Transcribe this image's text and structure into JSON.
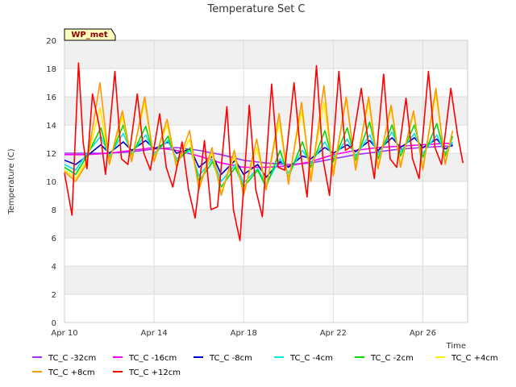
{
  "chart_data": {
    "type": "line",
    "title": "Temperature Set C",
    "xlabel": "Time",
    "ylabel": "Temperature (C)",
    "badge": "WP_met",
    "ylim": [
      0,
      20
    ],
    "yticks": [
      0,
      2,
      4,
      6,
      8,
      10,
      12,
      14,
      16,
      18,
      20
    ],
    "xlim": [
      "2024-04-10",
      "2024-04-28"
    ],
    "xticks": [
      {
        "date": "2024-04-10",
        "label": "Apr 10"
      },
      {
        "date": "2024-04-14",
        "label": "Apr 14"
      },
      {
        "date": "2024-04-18",
        "label": "Apr 18"
      },
      {
        "date": "2024-04-22",
        "label": "Apr 22"
      },
      {
        "date": "2024-04-26",
        "label": "Apr 26"
      }
    ],
    "grid": true,
    "legend_placement": "bottom",
    "series": [
      {
        "name": "TC_C -32cm",
        "color": "#9933ff",
        "x": [
          "2024-04-10",
          "2024-04-11",
          "2024-04-12",
          "2024-04-13",
          "2024-04-14",
          "2024-04-15",
          "2024-04-16",
          "2024-04-17",
          "2024-04-18",
          "2024-04-19",
          "2024-04-20",
          "2024-04-21",
          "2024-04-22",
          "2024-04-23",
          "2024-04-24",
          "2024-04-25",
          "2024-04-26",
          "2024-04-27",
          "2024-04-27T08:00"
        ],
        "y": [
          12.0,
          12.0,
          12.0,
          12.1,
          12.3,
          12.4,
          12.2,
          11.9,
          11.5,
          11.3,
          11.2,
          11.3,
          11.6,
          11.9,
          12.1,
          12.3,
          12.4,
          12.5,
          12.5
        ]
      },
      {
        "name": "TC_C -16cm",
        "color": "#ff00ff",
        "x": [
          "2024-04-10",
          "2024-04-11",
          "2024-04-12",
          "2024-04-13",
          "2024-04-14",
          "2024-04-15",
          "2024-04-16",
          "2024-04-17",
          "2024-04-18",
          "2024-04-19",
          "2024-04-20",
          "2024-04-21",
          "2024-04-22",
          "2024-04-23",
          "2024-04-24",
          "2024-04-25",
          "2024-04-26",
          "2024-04-27",
          "2024-04-27T08:00"
        ],
        "y": [
          11.9,
          11.9,
          12.0,
          12.2,
          12.4,
          12.2,
          11.8,
          11.3,
          11.0,
          11.0,
          11.1,
          11.4,
          11.9,
          12.2,
          12.4,
          12.5,
          12.6,
          12.7,
          12.7
        ]
      },
      {
        "name": "TC_C -8cm",
        "color": "#0000cc",
        "x": [
          "2024-04-10",
          "2024-04-10T12:00",
          "2024-04-11",
          "2024-04-11T15:00",
          "2024-04-12",
          "2024-04-12T15:00",
          "2024-04-13",
          "2024-04-13T15:00",
          "2024-04-14",
          "2024-04-14T15:00",
          "2024-04-15",
          "2024-04-15T15:00",
          "2024-04-16",
          "2024-04-16T15:00",
          "2024-04-17",
          "2024-04-17T15:00",
          "2024-04-18",
          "2024-04-18T15:00",
          "2024-04-19",
          "2024-04-19T15:00",
          "2024-04-20",
          "2024-04-20T15:00",
          "2024-04-21",
          "2024-04-21T15:00",
          "2024-04-22",
          "2024-04-22T15:00",
          "2024-04-23",
          "2024-04-23T15:00",
          "2024-04-24",
          "2024-04-24T15:00",
          "2024-04-25",
          "2024-04-25T15:00",
          "2024-04-26",
          "2024-04-26T15:00",
          "2024-04-27",
          "2024-04-27T08:00"
        ],
        "y": [
          11.5,
          11.2,
          11.8,
          12.6,
          12.0,
          12.8,
          12.2,
          12.9,
          12.3,
          12.8,
          12.0,
          12.3,
          11.0,
          11.8,
          10.5,
          11.5,
          10.5,
          11.2,
          10.3,
          11.4,
          11.0,
          11.8,
          11.6,
          12.4,
          12.0,
          12.6,
          12.1,
          12.9,
          12.2,
          13.1,
          12.4,
          13.1,
          12.4,
          13.0,
          12.3,
          12.6
        ]
      },
      {
        "name": "TC_C -4cm",
        "color": "#00e5e5",
        "x": [
          "2024-04-10",
          "2024-04-10T12:00",
          "2024-04-11",
          "2024-04-11T15:00",
          "2024-04-12",
          "2024-04-12T15:00",
          "2024-04-13",
          "2024-04-13T15:00",
          "2024-04-14",
          "2024-04-14T15:00",
          "2024-04-15",
          "2024-04-15T15:00",
          "2024-04-16",
          "2024-04-16T15:00",
          "2024-04-17",
          "2024-04-17T15:00",
          "2024-04-18",
          "2024-04-18T15:00",
          "2024-04-19",
          "2024-04-19T15:00",
          "2024-04-20",
          "2024-04-20T15:00",
          "2024-04-21",
          "2024-04-21T15:00",
          "2024-04-22",
          "2024-04-22T15:00",
          "2024-04-23",
          "2024-04-23T15:00",
          "2024-04-24",
          "2024-04-24T15:00",
          "2024-04-25",
          "2024-04-25T15:00",
          "2024-04-26",
          "2024-04-26T15:00",
          "2024-04-27",
          "2024-04-27T08:00"
        ],
        "y": [
          11.2,
          10.8,
          12.0,
          13.2,
          11.8,
          13.4,
          12.0,
          13.3,
          12.0,
          12.9,
          11.6,
          12.2,
          10.4,
          11.6,
          10.0,
          11.2,
          9.9,
          10.9,
          9.8,
          11.6,
          10.6,
          12.2,
          11.3,
          12.8,
          11.7,
          13.0,
          11.8,
          13.3,
          11.9,
          13.5,
          12.1,
          13.4,
          12.0,
          13.3,
          12.0,
          12.8
        ]
      },
      {
        "name": "TC_C -2cm",
        "color": "#00dd00",
        "x": [
          "2024-04-10",
          "2024-04-10T12:00",
          "2024-04-11",
          "2024-04-11T15:00",
          "2024-04-12",
          "2024-04-12T15:00",
          "2024-04-13",
          "2024-04-13T15:00",
          "2024-04-14",
          "2024-04-14T15:00",
          "2024-04-15",
          "2024-04-15T15:00",
          "2024-04-16",
          "2024-04-16T15:00",
          "2024-04-17",
          "2024-04-17T15:00",
          "2024-04-18",
          "2024-04-18T15:00",
          "2024-04-19",
          "2024-04-19T15:00",
          "2024-04-20",
          "2024-04-20T15:00",
          "2024-04-21",
          "2024-04-21T15:00",
          "2024-04-22",
          "2024-04-22T15:00",
          "2024-04-23",
          "2024-04-23T15:00",
          "2024-04-24",
          "2024-04-24T15:00",
          "2024-04-25",
          "2024-04-25T15:00",
          "2024-04-26",
          "2024-04-26T15:00",
          "2024-04-27",
          "2024-04-27T08:00"
        ],
        "y": [
          11.0,
          10.5,
          11.8,
          13.8,
          11.6,
          14.0,
          11.8,
          13.9,
          11.8,
          13.2,
          11.4,
          12.4,
          10.0,
          11.4,
          9.6,
          11.0,
          9.6,
          10.8,
          9.6,
          12.2,
          10.3,
          12.8,
          11.0,
          13.6,
          11.4,
          13.8,
          11.5,
          14.2,
          11.6,
          14.0,
          11.8,
          14.0,
          11.7,
          14.1,
          11.8,
          13.2
        ]
      },
      {
        "name": "TC_C +4cm",
        "color": "#ffee00",
        "x": [
          "2024-04-10",
          "2024-04-10T12:00",
          "2024-04-11",
          "2024-04-11T14:00",
          "2024-04-12",
          "2024-04-12T14:00",
          "2024-04-13",
          "2024-04-13T14:00",
          "2024-04-14",
          "2024-04-14T14:00",
          "2024-04-15",
          "2024-04-15T14:00",
          "2024-04-16",
          "2024-04-16T14:00",
          "2024-04-17",
          "2024-04-17T14:00",
          "2024-04-18",
          "2024-04-18T14:00",
          "2024-04-19",
          "2024-04-19T14:00",
          "2024-04-20",
          "2024-04-20T14:00",
          "2024-04-21",
          "2024-04-21T14:00",
          "2024-04-22",
          "2024-04-22T14:00",
          "2024-04-23",
          "2024-04-23T14:00",
          "2024-04-24",
          "2024-04-24T14:00",
          "2024-04-25",
          "2024-04-25T14:00",
          "2024-04-26",
          "2024-04-26T14:00",
          "2024-04-27",
          "2024-04-27T08:00"
        ],
        "y": [
          10.8,
          10.2,
          11.5,
          15.2,
          11.4,
          14.6,
          11.6,
          15.6,
          11.6,
          14.0,
          11.2,
          13.0,
          9.6,
          12.0,
          9.2,
          11.8,
          9.2,
          12.4,
          9.6,
          14.2,
          10.0,
          15.0,
          10.4,
          15.6,
          10.8,
          15.8,
          11.0,
          15.6,
          11.1,
          15.2,
          11.2,
          14.8,
          11.0,
          16.2,
          11.4,
          13.6
        ]
      },
      {
        "name": "TC_C +8cm",
        "color": "#ff9900",
        "x": [
          "2024-04-10",
          "2024-04-10T12:00",
          "2024-04-11",
          "2024-04-11T14:00",
          "2024-04-12",
          "2024-04-12T14:00",
          "2024-04-13",
          "2024-04-13T14:00",
          "2024-04-14",
          "2024-04-14T14:00",
          "2024-04-15",
          "2024-04-15T14:00",
          "2024-04-16",
          "2024-04-16T14:00",
          "2024-04-17",
          "2024-04-17T14:00",
          "2024-04-18",
          "2024-04-18T14:00",
          "2024-04-19",
          "2024-04-19T14:00",
          "2024-04-20",
          "2024-04-20T14:00",
          "2024-04-21",
          "2024-04-21T14:00",
          "2024-04-22",
          "2024-04-22T14:00",
          "2024-04-23",
          "2024-04-23T14:00",
          "2024-04-24",
          "2024-04-24T14:00",
          "2024-04-25",
          "2024-04-25T14:00",
          "2024-04-26",
          "2024-04-26T14:00",
          "2024-04-27",
          "2024-04-27T08:00"
        ],
        "y": [
          10.7,
          10.0,
          11.3,
          17.0,
          11.2,
          15.0,
          11.4,
          16.0,
          11.4,
          14.4,
          11.0,
          13.6,
          9.4,
          12.4,
          9.0,
          12.2,
          9.0,
          13.0,
          9.4,
          14.8,
          9.8,
          15.6,
          10.0,
          16.8,
          10.4,
          16.0,
          10.8,
          16.0,
          10.9,
          15.4,
          11.0,
          15.0,
          10.8,
          16.6,
          11.2,
          13.6
        ]
      },
      {
        "name": "TC_C +12cm",
        "color": "#ff0000",
        "x": [
          "2024-04-10",
          "2024-04-10T08:00",
          "2024-04-10T15:00",
          "2024-04-10T20:00",
          "2024-04-11",
          "2024-04-11T06:00",
          "2024-04-11T13:00",
          "2024-04-11T20:00",
          "2024-04-12T06:00",
          "2024-04-12T13:00",
          "2024-04-12T20:00",
          "2024-04-13T06:00",
          "2024-04-13T13:00",
          "2024-04-13T20:00",
          "2024-04-14T06:00",
          "2024-04-14T13:00",
          "2024-04-14T20:00",
          "2024-04-15T06:00",
          "2024-04-15T13:00",
          "2024-04-15T20:00",
          "2024-04-16T06:00",
          "2024-04-16T13:00",
          "2024-04-16T20:00",
          "2024-04-17T06:00",
          "2024-04-17T13:00",
          "2024-04-17T20:00",
          "2024-04-18T06:00",
          "2024-04-18T13:00",
          "2024-04-18T20:00",
          "2024-04-19T06:00",
          "2024-04-19T13:00",
          "2024-04-19T20:00",
          "2024-04-20T06:00",
          "2024-04-20T13:00",
          "2024-04-20T20:00",
          "2024-04-21T06:00",
          "2024-04-21T13:00",
          "2024-04-21T20:00",
          "2024-04-22T06:00",
          "2024-04-22T13:00",
          "2024-04-22T20:00",
          "2024-04-23T06:00",
          "2024-04-23T13:00",
          "2024-04-23T20:00",
          "2024-04-24T06:00",
          "2024-04-24T13:00",
          "2024-04-24T20:00",
          "2024-04-25T06:00",
          "2024-04-25T13:00",
          "2024-04-25T20:00",
          "2024-04-26T06:00",
          "2024-04-26T13:00",
          "2024-04-26T20:00",
          "2024-04-27T06:00",
          "2024-04-27T13:00",
          "2024-04-27T19:00"
        ],
        "y": [
          10.6,
          7.6,
          18.4,
          12.8,
          10.9,
          16.2,
          14.0,
          10.5,
          17.8,
          11.6,
          11.2,
          16.2,
          12.0,
          10.8,
          14.8,
          11.0,
          9.6,
          12.8,
          9.4,
          7.4,
          12.9,
          8.0,
          8.2,
          15.3,
          8.0,
          5.8,
          15.4,
          9.4,
          7.5,
          16.9,
          11.0,
          10.8,
          17.0,
          12.0,
          8.9,
          18.2,
          11.6,
          9.0,
          17.8,
          12.2,
          12.5,
          16.6,
          13.0,
          10.2,
          17.6,
          11.6,
          11.0,
          15.9,
          11.6,
          10.2,
          17.8,
          12.4,
          11.2,
          16.6,
          13.4,
          11.3
        ]
      }
    ]
  }
}
